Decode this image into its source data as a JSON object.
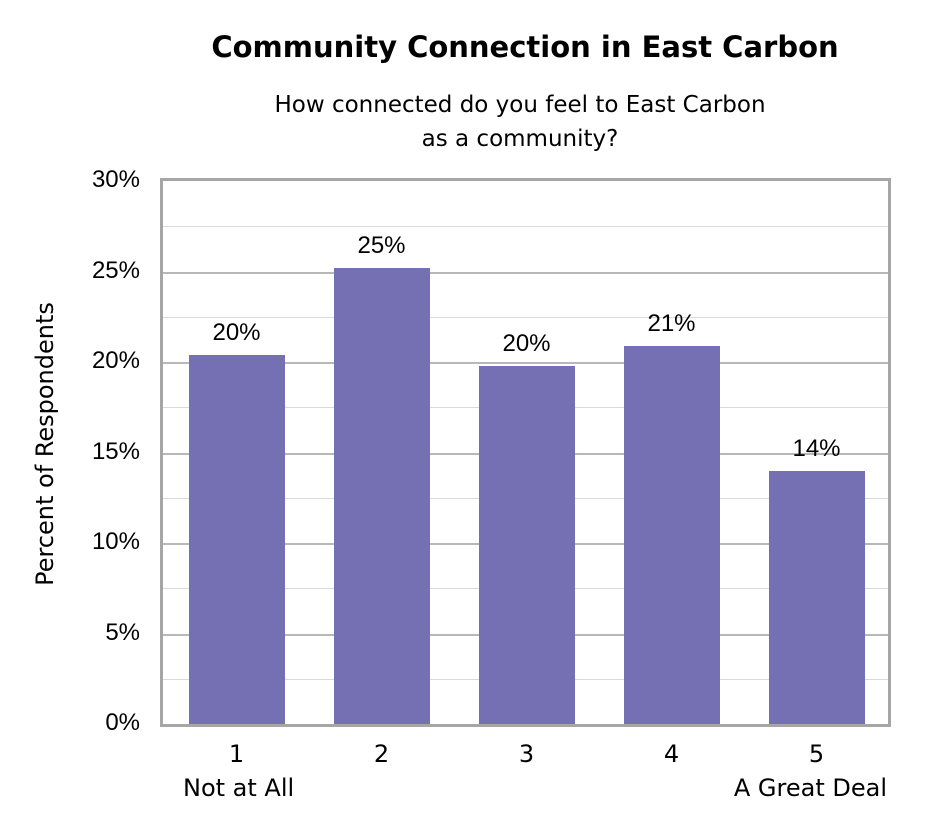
{
  "chart_data": {
    "type": "bar",
    "title": "Community Connection in East Carbon",
    "subtitle": "How connected do you feel to East Carbon as a community?",
    "subtitle_lines": [
      "How connected do you feel to East Carbon",
      "as a community?"
    ],
    "xlabel": "",
    "ylabel": "Percent of Respondents",
    "categories": [
      "1",
      "2",
      "3",
      "4",
      "5"
    ],
    "category_sublabels": {
      "1": "Not at All",
      "5": "A Great Deal"
    },
    "values": [
      20.4,
      25.2,
      19.8,
      20.9,
      14.0
    ],
    "data_labels": [
      "20%",
      "25%",
      "20%",
      "21%",
      "14%"
    ],
    "ylim": [
      0,
      30
    ],
    "yticks": [
      "0%",
      "5%",
      "10%",
      "15%",
      "20%",
      "25%",
      "30%"
    ],
    "grid": true,
    "legend": null,
    "bar_color": "#7570b3"
  }
}
